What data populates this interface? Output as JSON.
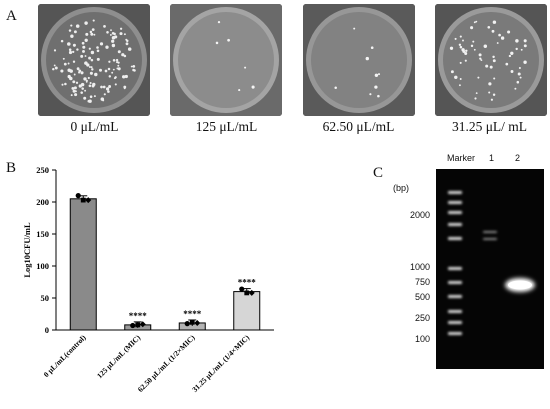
{
  "panel_a": {
    "letter": "A",
    "plates": [
      {
        "label": "0 μL/mL",
        "colony_density": "high"
      },
      {
        "label": "125 μL/mL",
        "colony_density": "very low"
      },
      {
        "label": "62.50 μL/mL",
        "colony_density": "very low"
      },
      {
        "label": "31.25 μL/ mL",
        "colony_density": "moderate"
      }
    ]
  },
  "panel_b": {
    "letter": "B"
  },
  "panel_c": {
    "letter": "C",
    "unit_label": "(bp)",
    "lane_labels": [
      "Marker",
      "1",
      "2"
    ],
    "ladder_labels": [
      "2000",
      "1000",
      "750",
      "500",
      "250",
      "100"
    ]
  },
  "chart_data": {
    "type": "bar",
    "categories": [
      "0 μL/mL(control)",
      "125 μL/mL (MIC)",
      "62.50 μL/mL (1/2×MIC)",
      "31.25 μL/mL (1/4×MIC)"
    ],
    "values": [
      205,
      8,
      11,
      60
    ],
    "points": [
      [
        210,
        203,
        203
      ],
      [
        7,
        8,
        9
      ],
      [
        10,
        12,
        11
      ],
      [
        64,
        58,
        58
      ]
    ],
    "annotations": [
      "",
      "****",
      "****",
      "****"
    ],
    "bar_colors": [
      "#8a8a8a",
      "#9a9a9a",
      "#b4b4b4",
      "#d6d6d6"
    ],
    "ylabel": "Log10CFU/mL",
    "ylim": [
      0,
      250
    ],
    "yticks": [
      "0",
      "50",
      "100",
      "150",
      "200",
      "250"
    ]
  }
}
